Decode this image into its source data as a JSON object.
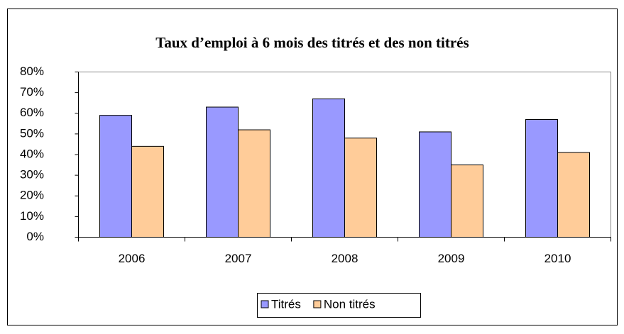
{
  "chart_data": {
    "type": "bar",
    "title": "Taux d’emploi à 6 mois des titrés et des non titrés",
    "categories": [
      "2006",
      "2007",
      "2008",
      "2009",
      "2010"
    ],
    "series": [
      {
        "name": "Titrés",
        "color": "#9999ff",
        "values": [
          59,
          63,
          67,
          51,
          57
        ]
      },
      {
        "name": "Non titrés",
        "color": "#ffcc99",
        "values": [
          44,
          52,
          48,
          35,
          41
        ]
      }
    ],
    "ylim": [
      0,
      80
    ],
    "yticks": [
      {
        "value": 0,
        "label": "0%"
      },
      {
        "value": 10,
        "label": "10%"
      },
      {
        "value": 20,
        "label": "20%"
      },
      {
        "value": 30,
        "label": "30%"
      },
      {
        "value": 40,
        "label": "40%"
      },
      {
        "value": 50,
        "label": "50%"
      },
      {
        "value": 60,
        "label": "60%"
      },
      {
        "value": 70,
        "label": "70%"
      },
      {
        "value": 80,
        "label": "80%"
      }
    ],
    "grid": false,
    "legend": "bottom"
  }
}
